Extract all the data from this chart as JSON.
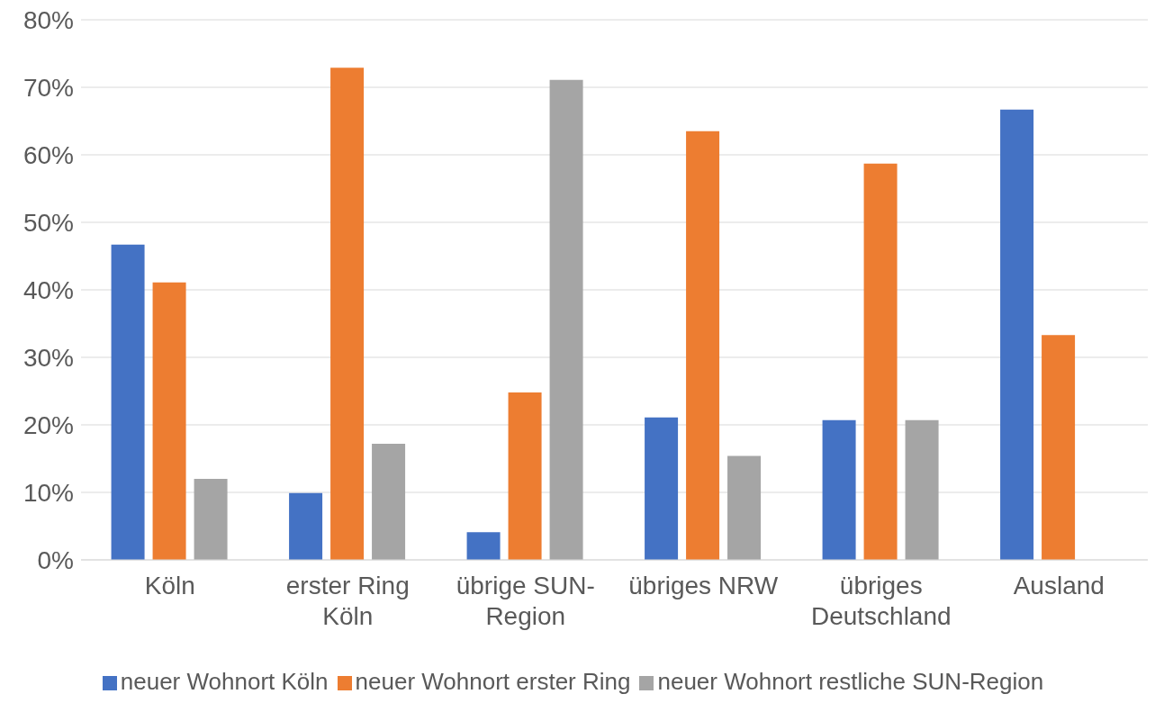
{
  "chart_data": {
    "type": "bar",
    "categories": [
      "Köln",
      "erster Ring Köln",
      "übrige SUN-Region",
      "übriges NRW",
      "übriges Deutschland",
      "Ausland"
    ],
    "series": [
      {
        "name": "neuer Wohnort Köln",
        "color": "#4472c4",
        "values": [
          46.7,
          9.9,
          4.1,
          21.1,
          20.7,
          66.7
        ]
      },
      {
        "name": "neuer Wohnort erster Ring",
        "color": "#ed7d31",
        "values": [
          41.1,
          72.9,
          24.8,
          63.5,
          58.7,
          33.3
        ]
      },
      {
        "name": "neuer Wohnort restliche SUN-Region",
        "color": "#a5a5a5",
        "values": [
          12.0,
          17.2,
          71.1,
          15.4,
          20.7,
          0
        ]
      }
    ],
    "ylim": [
      0,
      80
    ],
    "yticks": [
      {
        "value": 0,
        "label": "0%"
      },
      {
        "value": 10,
        "label": "10%"
      },
      {
        "value": 20,
        "label": "20%"
      },
      {
        "value": 30,
        "label": "30%"
      },
      {
        "value": 40,
        "label": "40%"
      },
      {
        "value": 50,
        "label": "50%"
      },
      {
        "value": 60,
        "label": "60%"
      },
      {
        "value": 70,
        "label": "70%"
      },
      {
        "value": 80,
        "label": "80%"
      }
    ],
    "grid": "y",
    "legend": "bottom"
  }
}
